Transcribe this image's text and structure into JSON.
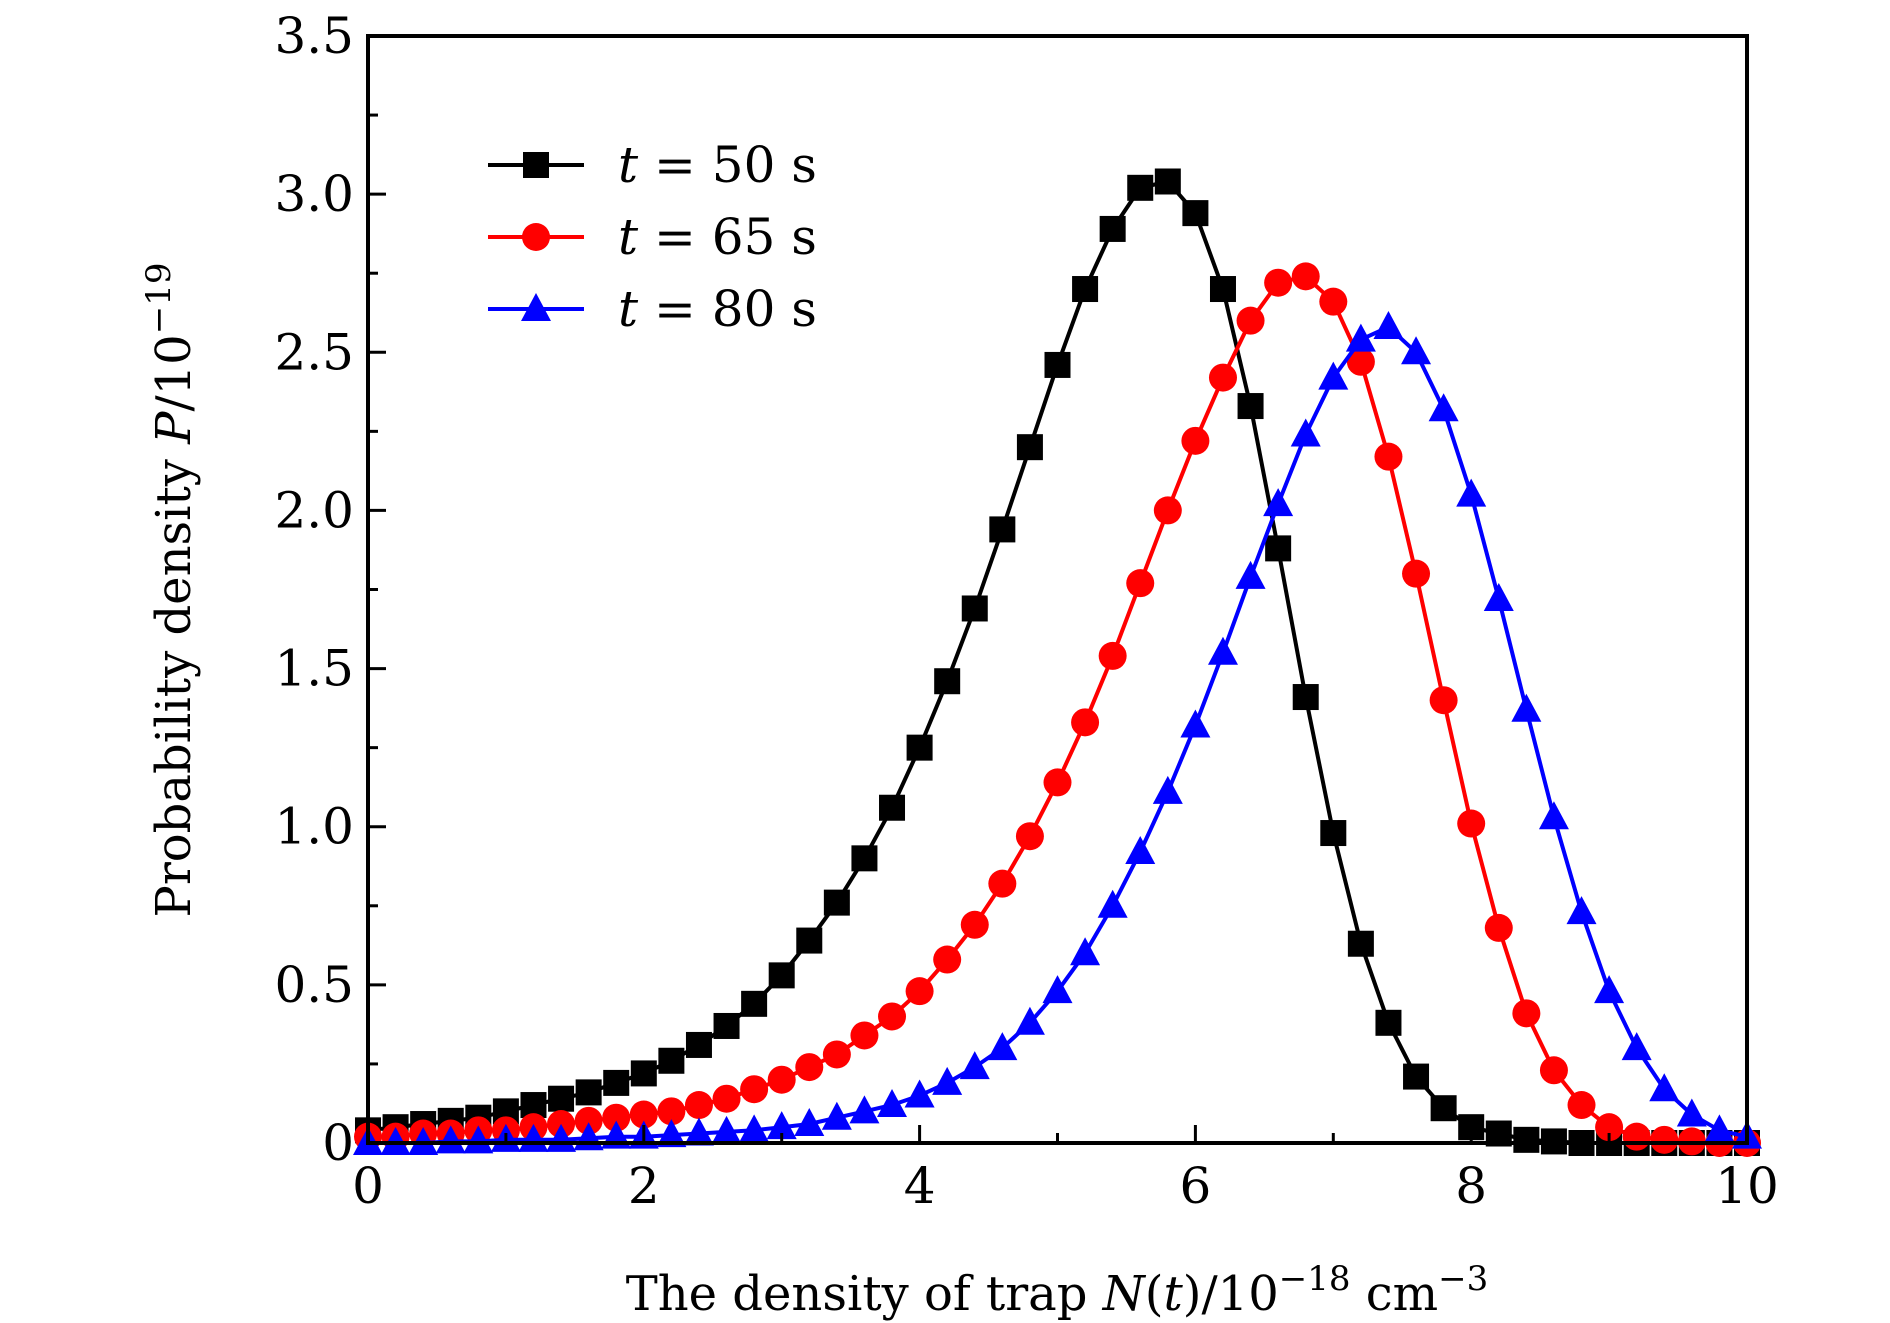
{
  "chart_data": {
    "type": "line",
    "xlabel": {
      "prefix": "The density of trap ",
      "var": "N",
      "paren_open": "(",
      "var2": "t",
      "paren_close": ")/10",
      "exp1": "−18",
      "unit": " cm",
      "exp2": "−3"
    },
    "ylabel": {
      "prefix": "Probability density ",
      "var": "P",
      "suffix": "/10",
      "exp": "−19"
    },
    "xlim": [
      0,
      10
    ],
    "ylim": [
      0,
      3.5
    ],
    "x_ticks": [
      {
        "value": 0,
        "label": "0"
      },
      {
        "value": 2,
        "label": "2"
      },
      {
        "value": 4,
        "label": "4"
      },
      {
        "value": 6,
        "label": "6"
      },
      {
        "value": 8,
        "label": "8"
      },
      {
        "value": 10,
        "label": "10"
      }
    ],
    "y_ticks": [
      {
        "value": 0,
        "label": "0"
      },
      {
        "value": 0.5,
        "label": "0.5"
      },
      {
        "value": 1.0,
        "label": "1.0"
      },
      {
        "value": 1.5,
        "label": "1.5"
      },
      {
        "value": 2.0,
        "label": "2.0"
      },
      {
        "value": 2.5,
        "label": "2.5"
      },
      {
        "value": 3.0,
        "label": "3.0"
      },
      {
        "value": 3.5,
        "label": "3.5"
      }
    ],
    "grid": false,
    "legend_position": "top-left",
    "series": [
      {
        "name": "t = 50 s",
        "legend": {
          "var": "t",
          "eq": " = ",
          "rest": "50 s"
        },
        "color": "#000000",
        "marker": "square",
        "x": [
          0.0,
          0.2,
          0.4,
          0.6,
          0.8,
          1.0,
          1.2,
          1.4,
          1.6,
          1.8,
          2.0,
          2.2,
          2.4,
          2.6,
          2.8,
          3.0,
          3.2,
          3.4,
          3.6,
          3.8,
          4.0,
          4.2,
          4.4,
          4.6,
          4.8,
          5.0,
          5.2,
          5.4,
          5.6,
          5.8,
          6.0,
          6.2,
          6.4,
          6.6,
          6.8,
          7.0,
          7.2,
          7.4,
          7.6,
          7.8,
          8.0,
          8.2,
          8.4,
          8.6,
          8.8,
          9.0,
          9.2,
          9.4,
          9.6,
          9.8,
          10.0
        ],
        "y": [
          0.04,
          0.05,
          0.06,
          0.07,
          0.08,
          0.1,
          0.12,
          0.14,
          0.16,
          0.19,
          0.22,
          0.26,
          0.31,
          0.37,
          0.44,
          0.53,
          0.64,
          0.76,
          0.9,
          1.06,
          1.25,
          1.46,
          1.69,
          1.94,
          2.2,
          2.46,
          2.7,
          2.89,
          3.02,
          3.04,
          2.94,
          2.7,
          2.33,
          1.88,
          1.41,
          0.98,
          0.63,
          0.38,
          0.21,
          0.11,
          0.05,
          0.03,
          0.01,
          0.005,
          0.0,
          0.0,
          0.0,
          0.0,
          0.0,
          0.0,
          0.0
        ]
      },
      {
        "name": "t = 65 s",
        "legend": {
          "var": "t",
          "eq": " = ",
          "rest": "65 s"
        },
        "color": "#ff0000",
        "marker": "circle",
        "x": [
          0.0,
          0.2,
          0.4,
          0.6,
          0.8,
          1.0,
          1.2,
          1.4,
          1.6,
          1.8,
          2.0,
          2.2,
          2.4,
          2.6,
          2.8,
          3.0,
          3.2,
          3.4,
          3.6,
          3.8,
          4.0,
          4.2,
          4.4,
          4.6,
          4.8,
          5.0,
          5.2,
          5.4,
          5.6,
          5.8,
          6.0,
          6.2,
          6.4,
          6.6,
          6.8,
          7.0,
          7.2,
          7.4,
          7.6,
          7.8,
          8.0,
          8.2,
          8.4,
          8.6,
          8.8,
          9.0,
          9.2,
          9.4,
          9.6,
          9.8,
          10.0
        ],
        "y": [
          0.02,
          0.02,
          0.03,
          0.03,
          0.04,
          0.04,
          0.05,
          0.06,
          0.07,
          0.08,
          0.09,
          0.1,
          0.12,
          0.14,
          0.17,
          0.2,
          0.24,
          0.28,
          0.34,
          0.4,
          0.48,
          0.58,
          0.69,
          0.82,
          0.97,
          1.14,
          1.33,
          1.54,
          1.77,
          2.0,
          2.22,
          2.42,
          2.6,
          2.72,
          2.74,
          2.66,
          2.47,
          2.17,
          1.8,
          1.4,
          1.01,
          0.68,
          0.41,
          0.23,
          0.12,
          0.05,
          0.02,
          0.01,
          0.005,
          0.0,
          0.0
        ]
      },
      {
        "name": "t = 80 s",
        "legend": {
          "var": "t",
          "eq": " = ",
          "rest": "80 s"
        },
        "color": "#0000ff",
        "marker": "triangle",
        "x": [
          0.0,
          0.2,
          0.4,
          0.6,
          0.8,
          1.0,
          1.2,
          1.4,
          1.6,
          1.8,
          2.0,
          2.2,
          2.4,
          2.6,
          2.8,
          3.0,
          3.2,
          3.4,
          3.6,
          3.8,
          4.0,
          4.2,
          4.4,
          4.6,
          4.8,
          5.0,
          5.2,
          5.4,
          5.6,
          5.8,
          6.0,
          6.2,
          6.4,
          6.6,
          6.8,
          7.0,
          7.2,
          7.4,
          7.6,
          7.8,
          8.0,
          8.2,
          8.4,
          8.6,
          8.8,
          9.0,
          9.2,
          9.4,
          9.6,
          9.8,
          10.0
        ],
        "y": [
          0.0,
          0.0,
          0.0,
          0.005,
          0.005,
          0.01,
          0.01,
          0.01,
          0.015,
          0.02,
          0.02,
          0.025,
          0.03,
          0.035,
          0.04,
          0.05,
          0.06,
          0.08,
          0.1,
          0.12,
          0.15,
          0.19,
          0.24,
          0.3,
          0.38,
          0.48,
          0.6,
          0.75,
          0.92,
          1.11,
          1.32,
          1.55,
          1.79,
          2.02,
          2.24,
          2.42,
          2.54,
          2.58,
          2.5,
          2.32,
          2.05,
          1.72,
          1.37,
          1.03,
          0.73,
          0.48,
          0.3,
          0.17,
          0.09,
          0.04,
          0.02
        ]
      }
    ]
  }
}
